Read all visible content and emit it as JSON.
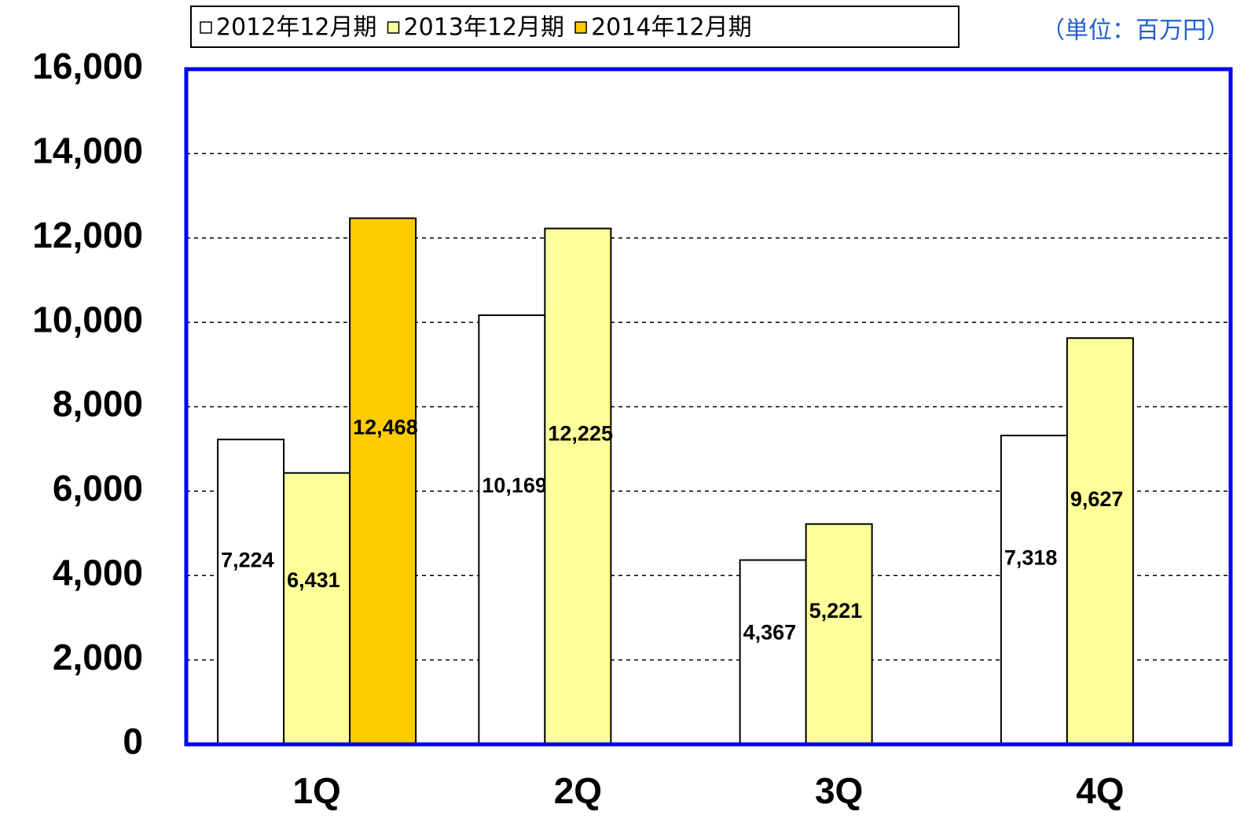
{
  "chart_data": {
    "type": "bar",
    "unit_label": "（単位：百万円）",
    "categories": [
      "1Q",
      "2Q",
      "3Q",
      "4Q"
    ],
    "series": [
      {
        "name": "2012年12月期",
        "color": "#ffffff",
        "values": [
          7224,
          10169,
          4367,
          7318
        ],
        "value_labels": [
          "7,224",
          "10,169",
          "4,367",
          "7,318"
        ]
      },
      {
        "name": "2013年12月期",
        "color": "#ffff99",
        "values": [
          6431,
          12225,
          5221,
          9627
        ],
        "value_labels": [
          "6,431",
          "12,225",
          "5,221",
          "9,627"
        ]
      },
      {
        "name": "2014年12月期",
        "color": "#ffcc00",
        "values": [
          12468,
          null,
          null,
          null
        ],
        "value_labels": [
          "12,468",
          null,
          null,
          null
        ]
      }
    ],
    "ylim": [
      0,
      16000
    ],
    "yticks": [
      0,
      {
        "value": 2000,
        "label": "2,000"
      },
      {
        "value": 4000,
        "label": "4,000"
      },
      {
        "value": 6000,
        "label": "6,000"
      },
      {
        "value": 8000,
        "label": "8,000"
      },
      {
        "value": 10000,
        "label": "10,000"
      },
      {
        "value": 12000,
        "label": "12,000"
      },
      {
        "value": 14000,
        "label": "14,000"
      },
      {
        "value": 16000,
        "label": "16,000"
      }
    ],
    "grid": true
  }
}
